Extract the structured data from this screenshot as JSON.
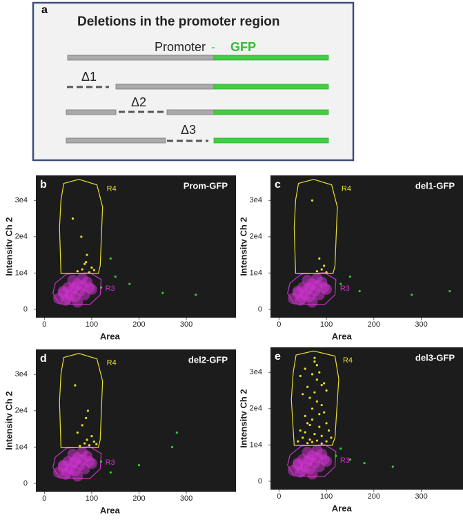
{
  "panel_a": {
    "label": "a",
    "title": "Deletions in the promoter region",
    "promoter": "Promoter",
    "dash": "-",
    "gfp": "GFP",
    "deletions": [
      "Δ1",
      "Δ2",
      "Δ3"
    ]
  },
  "chart_data": [
    {
      "type": "scatter",
      "panel_label": "b",
      "title": "Prom-GFP",
      "x_label": "Area",
      "y_label": "Intensitv Ch 2",
      "xlim": [
        -18,
        405
      ],
      "ylim": [
        -2300,
        36900
      ],
      "xticks": [
        0,
        100,
        200,
        300
      ],
      "yticks": [
        0,
        {
          "value": 10000,
          "label": "1e4"
        },
        {
          "value": 20000,
          "label": "2e4"
        },
        {
          "value": 30000,
          "label": "3e4"
        }
      ],
      "series": [
        {
          "name": "R3",
          "color": "#cc33cc",
          "gate_x": [
            47,
            96,
            120,
            118,
            96,
            32,
            18,
            23
          ],
          "gate_y": [
            9700,
            10100,
            8200,
            4000,
            1300,
            1500,
            4400,
            7200
          ],
          "x": [
            30,
            40,
            45,
            50,
            55,
            60,
            65,
            70,
            75,
            80,
            85,
            90,
            95,
            100,
            50,
            60,
            70,
            40,
            80,
            65
          ],
          "y": [
            3000,
            4500,
            2500,
            6000,
            4000,
            5500,
            3500,
            7000,
            5000,
            6500,
            4000,
            7500,
            6000,
            5500,
            3000,
            8000,
            2000,
            5000,
            8500,
            6000
          ]
        },
        {
          "name": "R4",
          "color": "#e6e030",
          "gate_x": [
            41,
            73,
            111,
            123,
            118,
            114,
            35,
            32,
            35
          ],
          "gate_y": [
            34700,
            35800,
            34300,
            28200,
            12000,
            9900,
            9900,
            22500,
            30100
          ],
          "x": [
            70,
            80,
            85,
            95,
            90,
            100,
            105,
            78,
            88,
            60
          ],
          "y": [
            10500,
            11000,
            12500,
            10200,
            15000,
            11500,
            10800,
            20000,
            13000,
            25000
          ]
        },
        {
          "color": "#33cc33",
          "x": [
            120,
            150,
            180,
            250,
            320,
            140
          ],
          "y": [
            6000,
            9000,
            7000,
            4500,
            4000,
            14000
          ]
        }
      ]
    },
    {
      "type": "scatter",
      "panel_label": "c",
      "title": "del1-GFP",
      "x_label": "Area",
      "y_label": "Intensitv Ch 2",
      "xlim": [
        -18,
        388
      ],
      "ylim": [
        -2300,
        36900
      ],
      "xticks": [
        0,
        100,
        200,
        300
      ],
      "yticks": [
        0,
        {
          "value": 10000,
          "label": "1e4"
        },
        {
          "value": 20000,
          "label": "2e4"
        },
        {
          "value": 30000,
          "label": "3e4"
        }
      ],
      "series": [
        {
          "name": "R3",
          "color": "#cc33cc",
          "gate_x": [
            47,
            96,
            120,
            118,
            96,
            32,
            18,
            23
          ],
          "gate_y": [
            9700,
            10100,
            8200,
            4000,
            1300,
            1500,
            4400,
            7200
          ],
          "x": [
            30,
            40,
            45,
            50,
            55,
            60,
            65,
            70,
            75,
            80,
            85,
            90,
            95,
            100,
            50,
            60,
            70,
            40,
            80,
            65
          ],
          "y": [
            3000,
            4500,
            2500,
            6000,
            4000,
            5500,
            3500,
            7000,
            5000,
            6500,
            4000,
            7500,
            6000,
            5500,
            3000,
            8000,
            2000,
            5000,
            8500,
            6000
          ]
        },
        {
          "name": "R4",
          "color": "#e6e030",
          "gate_x": [
            41,
            73,
            111,
            123,
            118,
            114,
            35,
            32,
            35
          ],
          "gate_y": [
            34700,
            35800,
            34300,
            28200,
            12000,
            9900,
            9900,
            22500,
            30100
          ],
          "x": [
            80,
            90,
            100,
            85,
            95,
            70
          ],
          "y": [
            10500,
            11000,
            10200,
            14000,
            12000,
            30000
          ]
        },
        {
          "color": "#33cc33",
          "x": [
            130,
            150,
            170,
            280,
            360
          ],
          "y": [
            7000,
            9000,
            5000,
            4000,
            5000
          ]
        }
      ]
    },
    {
      "type": "scatter",
      "panel_label": "d",
      "title": "del2-GFP",
      "x_label": "Area",
      "y_label": "Intensitv Ch 2",
      "xlim": [
        -18,
        405
      ],
      "ylim": [
        -2300,
        36900
      ],
      "xticks": [
        0,
        100,
        200,
        300
      ],
      "yticks": [
        0,
        {
          "value": 10000,
          "label": "1e4"
        },
        {
          "value": 20000,
          "label": "2e4"
        },
        {
          "value": 30000,
          "label": "3e4"
        }
      ],
      "series": [
        {
          "name": "R3",
          "color": "#cc33cc",
          "gate_x": [
            47,
            96,
            120,
            118,
            96,
            32,
            18,
            23
          ],
          "gate_y": [
            9700,
            10100,
            8200,
            4000,
            1300,
            1500,
            4400,
            7200
          ],
          "x": [
            30,
            40,
            45,
            50,
            55,
            60,
            65,
            70,
            75,
            80,
            85,
            90,
            95,
            100,
            50,
            60,
            70,
            40,
            80,
            65
          ],
          "y": [
            3000,
            4500,
            2500,
            6000,
            4000,
            5500,
            3500,
            7000,
            5000,
            6500,
            4000,
            7500,
            6000,
            5500,
            3000,
            8000,
            2000,
            5000,
            8500,
            6000
          ]
        },
        {
          "name": "R4",
          "color": "#e6e030",
          "gate_x": [
            41,
            73,
            111,
            123,
            118,
            114,
            35,
            32,
            35
          ],
          "gate_y": [
            34700,
            35800,
            34300,
            28200,
            12000,
            9900,
            9900,
            22500,
            30100
          ],
          "x": [
            75,
            85,
            90,
            95,
            100,
            105,
            80,
            88,
            92,
            110,
            70,
            65
          ],
          "y": [
            10300,
            11000,
            12000,
            10500,
            13000,
            11500,
            16000,
            18000,
            20000,
            10800,
            14000,
            27000
          ]
        },
        {
          "color": "#33cc33",
          "x": [
            120,
            140,
            200,
            280,
            270
          ],
          "y": [
            6000,
            3000,
            5000,
            14000,
            10000
          ]
        }
      ]
    },
    {
      "type": "scatter",
      "panel_label": "e",
      "title": "del3-GFP",
      "x_label": "Area",
      "y_label": "Intensitv Ch 2",
      "xlim": [
        -18,
        388
      ],
      "ylim": [
        -2300,
        36900
      ],
      "xticks": [
        0,
        100,
        200,
        300
      ],
      "yticks": [
        0,
        {
          "value": 10000,
          "label": "1e4"
        },
        {
          "value": 20000,
          "label": "2e4"
        },
        {
          "value": 30000,
          "label": "3e4"
        }
      ],
      "series": [
        {
          "name": "R3",
          "color": "#cc33cc",
          "gate_x": [
            47,
            96,
            120,
            118,
            96,
            32,
            18,
            23
          ],
          "gate_y": [
            9700,
            10100,
            8200,
            4000,
            1300,
            1500,
            4400,
            7200
          ],
          "x": [
            30,
            40,
            45,
            50,
            55,
            60,
            65,
            70,
            75,
            80,
            85,
            90,
            95,
            100,
            50,
            60,
            70,
            40,
            80,
            65
          ],
          "y": [
            3000,
            4500,
            2500,
            6000,
            4000,
            5500,
            3500,
            7000,
            5000,
            6500,
            4000,
            7500,
            6000,
            5500,
            3000,
            8000,
            2000,
            5000,
            8500,
            6000
          ]
        },
        {
          "name": "R4",
          "color": "#e6e030",
          "gate_x": [
            36,
            73,
            118,
            126,
            118,
            112,
            32,
            26,
            30
          ],
          "gate_y": [
            34800,
            35900,
            34500,
            28200,
            12000,
            9900,
            9900,
            22500,
            30100
          ],
          "x": [
            40,
            45,
            50,
            55,
            60,
            65,
            70,
            75,
            80,
            85,
            90,
            95,
            100,
            105,
            110,
            50,
            60,
            70,
            80,
            90,
            100,
            45,
            55,
            65,
            75,
            85,
            95,
            60,
            70,
            80,
            90,
            100,
            55,
            65,
            75,
            85,
            70,
            80,
            90,
            75
          ],
          "y": [
            11000,
            14000,
            12000,
            18000,
            16000,
            11500,
            20000,
            13000,
            22000,
            15000,
            12500,
            19000,
            11000,
            14000,
            12000,
            24000,
            26000,
            17000,
            28000,
            21000,
            25000,
            29000,
            31000,
            23000,
            33000,
            30000,
            27000,
            10500,
            10800,
            11200,
            10400,
            16000,
            13500,
            15500,
            24500,
            18500,
            29500,
            32000,
            26500,
            34000
          ]
        },
        {
          "color": "#33cc33",
          "x": [
            120,
            130,
            150,
            180,
            240
          ],
          "y": [
            7000,
            9000,
            6000,
            5000,
            4000
          ]
        }
      ]
    }
  ]
}
